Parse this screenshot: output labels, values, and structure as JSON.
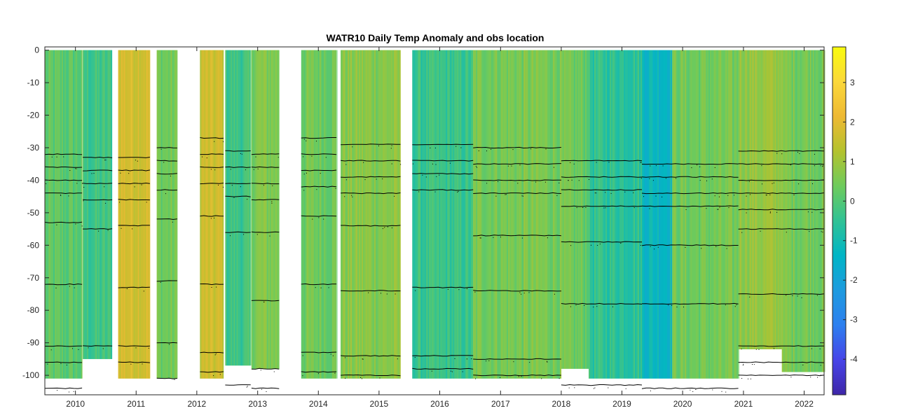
{
  "chart_data": {
    "type": "heatmap",
    "title": "WATR10 Daily Temp Anomaly and obs location",
    "xlabel": "",
    "ylabel": "",
    "x_axis": {
      "type": "date",
      "range": [
        "2009-07-01",
        "2022-05-01"
      ],
      "ticks": [
        "2010",
        "2011",
        "2012",
        "2013",
        "2014",
        "2015",
        "2016",
        "2017",
        "2018",
        "2019",
        "2020",
        "2021",
        "2022"
      ]
    },
    "y_axis": {
      "range": [
        -106,
        1
      ],
      "ticks": [
        0,
        -10,
        -20,
        -30,
        -40,
        -50,
        -60,
        -70,
        -80,
        -90,
        -100
      ]
    },
    "colorbar": {
      "range": [
        -4.9,
        3.9
      ],
      "ticks": [
        3,
        2,
        1,
        0,
        -1,
        -2,
        -3,
        -4
      ],
      "colormap": "parula",
      "colors": [
        "#3e26a8",
        "#4744e8",
        "#2d7fef",
        "#1e9bdf",
        "#00b5c6",
        "#30c295",
        "#6ecb5c",
        "#b4c22e",
        "#eeb933",
        "#fbd83a",
        "#f9fb0e"
      ]
    },
    "segments": [
      {
        "start": "2009-07-01",
        "end": "2010-02-10",
        "anomaly": 0.1,
        "bottom": -101
      },
      {
        "start": "2010-02-14",
        "end": "2010-08-10",
        "anomaly": -0.3,
        "bottom": -95
      },
      {
        "start": "2010-09-15",
        "end": "2011-03-25",
        "anomaly": 1.8,
        "bottom": -101
      },
      {
        "start": "2011-05-05",
        "end": "2011-09-05",
        "anomaly": 0.4,
        "bottom": -101
      },
      {
        "start": "2012-01-20",
        "end": "2012-06-10",
        "anomaly": 1.6,
        "bottom": -101
      },
      {
        "start": "2012-06-20",
        "end": "2012-11-20",
        "anomaly": -0.3,
        "bottom": -97
      },
      {
        "start": "2012-11-25",
        "end": "2013-05-10",
        "anomaly": 0.6,
        "bottom": -98
      },
      {
        "start": "2013-09-20",
        "end": "2014-04-20",
        "anomaly": 0.4,
        "bottom": -101
      },
      {
        "start": "2014-05-15",
        "end": "2015-05-10",
        "anomaly": 0.7,
        "bottom": -101
      },
      {
        "start": "2015-07-20",
        "end": "2016-07-20",
        "anomaly": -0.4,
        "bottom": -101
      },
      {
        "start": "2016-07-20",
        "end": "2018-01-01",
        "anomaly": 0.5,
        "bottom": -101
      },
      {
        "start": "2018-01-01",
        "end": "2018-06-15",
        "anomaly": 0.3,
        "bottom": -98
      },
      {
        "start": "2018-06-15",
        "end": "2019-05-01",
        "anomaly": -0.5,
        "bottom": -101
      },
      {
        "start": "2019-05-01",
        "end": "2019-10-30",
        "anomaly": -1.2,
        "bottom": -101
      },
      {
        "start": "2019-10-30",
        "end": "2020-12-01",
        "anomaly": 0.4,
        "bottom": -101
      },
      {
        "start": "2020-12-01",
        "end": "2021-08-20",
        "anomaly": 0.9,
        "bottom": -92
      },
      {
        "start": "2021-08-20",
        "end": "2022-05-01",
        "anomaly": 0.5,
        "bottom": -99
      }
    ],
    "obs_depth_lines": [
      {
        "start": "2009-07-01",
        "end": "2010-02-10",
        "depths": [
          -32,
          -36,
          -40,
          -44,
          -53,
          -72,
          -91,
          -96,
          -104
        ]
      },
      {
        "start": "2010-02-14",
        "end": "2010-08-10",
        "depths": [
          -33,
          -37,
          -41,
          -46,
          -55,
          -91
        ]
      },
      {
        "start": "2010-09-15",
        "end": "2011-03-25",
        "depths": [
          -33,
          -37,
          -41,
          -46,
          -54,
          -73,
          -91,
          -96
        ]
      },
      {
        "start": "2011-05-05",
        "end": "2011-09-05",
        "depths": [
          -30,
          -34,
          -38,
          -43,
          -52,
          -71,
          -90,
          -101
        ]
      },
      {
        "start": "2012-01-20",
        "end": "2012-06-10",
        "depths": [
          -27,
          -32,
          -36,
          -41,
          -51,
          -72,
          -93,
          -99
        ]
      },
      {
        "start": "2012-06-20",
        "end": "2012-11-20",
        "depths": [
          -31,
          -36,
          -41,
          -45,
          -56,
          -103
        ]
      },
      {
        "start": "2012-11-25",
        "end": "2013-05-10",
        "depths": [
          -32,
          -36,
          -41,
          -46,
          -56,
          -77,
          -98,
          -104
        ]
      },
      {
        "start": "2013-09-20",
        "end": "2014-04-20",
        "depths": [
          -27,
          -32,
          -37,
          -42,
          -51,
          -72,
          -93,
          -99
        ]
      },
      {
        "start": "2014-05-15",
        "end": "2015-05-10",
        "depths": [
          -29,
          -34,
          -39,
          -44,
          -54,
          -74,
          -94,
          -100
        ]
      },
      {
        "start": "2015-07-20",
        "end": "2016-07-20",
        "depths": [
          -29,
          -34,
          -38,
          -43,
          -73,
          -94,
          -98
        ]
      },
      {
        "start": "2016-07-20",
        "end": "2018-01-01",
        "depths": [
          -30,
          -35,
          -40,
          -44,
          -57,
          -74,
          -95,
          -100
        ]
      },
      {
        "start": "2018-01-01",
        "end": "2019-05-01",
        "depths": [
          -34,
          -39,
          -43,
          -48,
          -59,
          -78,
          -103
        ]
      },
      {
        "start": "2019-05-01",
        "end": "2020-12-01",
        "depths": [
          -35,
          -39,
          -44,
          -48,
          -60,
          -78,
          -104
        ]
      },
      {
        "start": "2020-12-01",
        "end": "2022-05-01",
        "depths": [
          -31,
          -35,
          -40,
          -44,
          -49,
          -55,
          -75,
          -91,
          -96,
          -100
        ]
      }
    ]
  }
}
